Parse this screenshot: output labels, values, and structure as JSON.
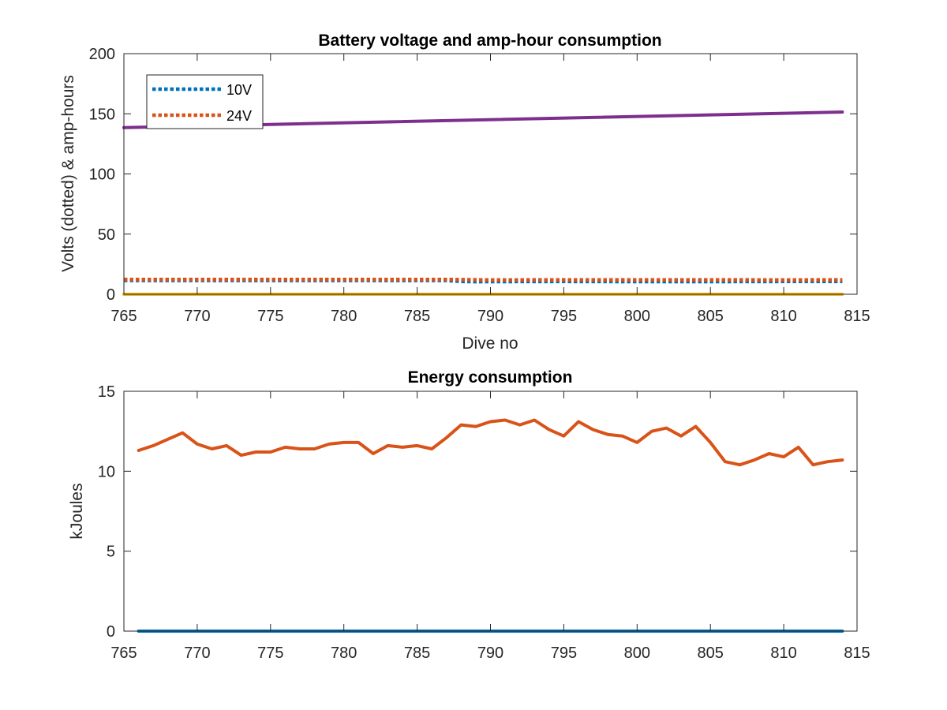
{
  "colors": {
    "blue": "#0072BD",
    "orange": "#D95319",
    "yellow": "#EDB120",
    "purple": "#7E2F8E",
    "axis": "#262626"
  },
  "chart_data": [
    {
      "type": "line",
      "title": "Battery voltage and amp-hour consumption",
      "xlabel": "Dive no",
      "ylabel": "Volts (dotted) & amp-hours",
      "xlim": [
        765,
        815
      ],
      "ylim": [
        0,
        200
      ],
      "xticks": [
        765,
        770,
        775,
        780,
        785,
        790,
        795,
        800,
        805,
        810,
        815
      ],
      "yticks": [
        0,
        50,
        100,
        150,
        200
      ],
      "legend_position": "top-left",
      "series": [
        {
          "name": "10V",
          "style": "dotted",
          "color": "#0072BD",
          "x": [
            765,
            787,
            788,
            789,
            790,
            795,
            800,
            805,
            810,
            814
          ],
          "y": [
            11.5,
            11.5,
            10.6,
            10.4,
            10.5,
            10.6,
            10.5,
            10.5,
            10.6,
            10.7
          ]
        },
        {
          "name": "24V",
          "style": "dotted",
          "color": "#D95319",
          "x": [
            765,
            787,
            790,
            795,
            800,
            805,
            810,
            814
          ],
          "y": [
            12.3,
            12.3,
            11.9,
            12.0,
            12.0,
            12.0,
            11.9,
            12.0
          ]
        },
        {
          "style": "solid",
          "color": "#7E2F8E",
          "x": [
            765,
            814
          ],
          "y": [
            138.5,
            151.5
          ]
        },
        {
          "style": "solid",
          "color": "#EDB120",
          "x": [
            765,
            814
          ],
          "y": [
            0,
            0
          ]
        }
      ]
    },
    {
      "type": "line",
      "title": "Energy consumption",
      "xlabel": "",
      "ylabel": "kJoules",
      "xlim": [
        765,
        815
      ],
      "ylim": [
        0,
        15
      ],
      "xticks": [
        765,
        770,
        775,
        780,
        785,
        790,
        795,
        800,
        805,
        810,
        815
      ],
      "yticks": [
        0,
        5,
        10,
        15
      ],
      "series": [
        {
          "style": "solid",
          "color": "#D95319",
          "x": [
            766,
            767,
            768,
            769,
            770,
            771,
            772,
            773,
            774,
            775,
            776,
            777,
            778,
            779,
            780,
            781,
            782,
            783,
            784,
            785,
            786,
            787,
            788,
            789,
            790,
            791,
            792,
            793,
            794,
            795,
            796,
            797,
            798,
            799,
            800,
            801,
            802,
            803,
            804,
            805,
            806,
            807,
            808,
            809,
            810,
            811,
            812,
            813,
            814
          ],
          "y": [
            11.3,
            11.6,
            12.0,
            12.4,
            11.7,
            11.4,
            11.6,
            11.0,
            11.2,
            11.2,
            11.5,
            11.4,
            11.4,
            11.7,
            11.8,
            11.8,
            11.1,
            11.6,
            11.5,
            11.6,
            11.4,
            12.1,
            12.9,
            12.8,
            13.1,
            13.2,
            12.9,
            13.2,
            12.6,
            12.2,
            13.1,
            12.6,
            12.3,
            12.2,
            11.8,
            12.5,
            12.7,
            12.2,
            12.8,
            11.8,
            10.6,
            10.4,
            10.7,
            11.1,
            10.9,
            11.5,
            10.4,
            10.6,
            10.7
          ]
        },
        {
          "style": "solid",
          "color": "#0072BD",
          "x": [
            766,
            814
          ],
          "y": [
            0,
            0
          ]
        }
      ]
    }
  ]
}
